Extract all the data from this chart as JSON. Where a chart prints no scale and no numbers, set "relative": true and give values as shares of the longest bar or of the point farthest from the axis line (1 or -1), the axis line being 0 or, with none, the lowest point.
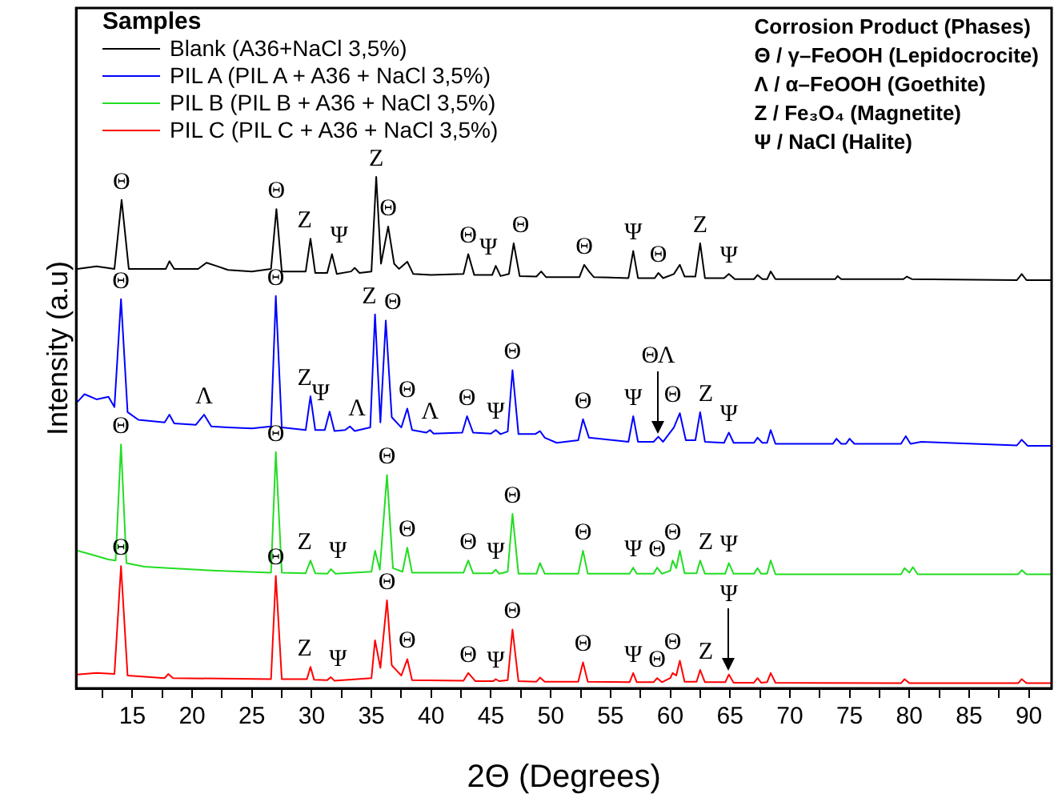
{
  "chart_data": {
    "type": "line",
    "relative": true,
    "xlabel": "2Θ (Degrees)",
    "ylabel": "Intensity (a.u)",
    "legend_title": "Samples",
    "legend": "top left",
    "grid": false,
    "marker": "none",
    "line_style": "solid",
    "xlim": [
      10.3,
      91.9
    ],
    "xticks": [
      {
        "value": 12.5,
        "label": null
      },
      15,
      {
        "value": 17.5,
        "label": null
      },
      20,
      {
        "value": 22.5,
        "label": null
      },
      25,
      {
        "value": 27.5,
        "label": null
      },
      30,
      {
        "value": 32.5,
        "label": null
      },
      35,
      {
        "value": 37.5,
        "label": null
      },
      40,
      {
        "value": 42.5,
        "label": null
      },
      45,
      {
        "value": 47.5,
        "label": null
      },
      50,
      {
        "value": 52.5,
        "label": null
      },
      55,
      {
        "value": 57.5,
        "label": null
      },
      60,
      {
        "value": 62.5,
        "label": null
      },
      65,
      {
        "value": 67.5,
        "label": null
      },
      70,
      {
        "value": 72.5,
        "label": null
      },
      75,
      {
        "value": 77.5,
        "label": null
      },
      80,
      {
        "value": 82.5,
        "label": null
      },
      85,
      {
        "value": 87.5,
        "label": null
      },
      90
    ],
    "series": [
      {
        "name": "Blank (A36+NaCl 3,5%)",
        "color": "#000000",
        "x": [
          10.4,
          12,
          13.5,
          14.1,
          14.7,
          16,
          17.8,
          18.1,
          18.5,
          20.5,
          21.2,
          22,
          23,
          25,
          26.6,
          27.05,
          27.5,
          29.5,
          29.9,
          30.3,
          31.3,
          31.7,
          32.1,
          33.3,
          33.6,
          34,
          35,
          35.4,
          35.8,
          36.4,
          36.9,
          37.3,
          38.0,
          38.5,
          40,
          42.7,
          43.1,
          43.6,
          45.1,
          45.4,
          45.8,
          46.5,
          46.9,
          47.4,
          48.8,
          49.2,
          49.6,
          52.4,
          52.8,
          53.2,
          53.6,
          56.5,
          56.9,
          57.3,
          58.7,
          59,
          59.4,
          60.3,
          60.8,
          61.2,
          62.1,
          62.5,
          62.9,
          64.5,
          64.9,
          65.4,
          67,
          67.3,
          67.7,
          68.1,
          68.4,
          68.8,
          73.8,
          74,
          74.3,
          79.5,
          79.8,
          80.2,
          89,
          89.4,
          89.8,
          91.9
        ],
        "values": [
          0.82,
          0.825,
          0.82,
          0.955,
          0.82,
          0.82,
          0.82,
          0.835,
          0.82,
          0.82,
          0.832,
          0.826,
          0.818,
          0.815,
          0.82,
          0.937,
          0.815,
          0.815,
          0.879,
          0.812,
          0.812,
          0.849,
          0.81,
          0.815,
          0.822,
          0.812,
          0.815,
          1.0,
          0.83,
          0.903,
          0.83,
          0.82,
          0.834,
          0.81,
          0.808,
          0.81,
          0.849,
          0.808,
          0.808,
          0.826,
          0.806,
          0.81,
          0.87,
          0.806,
          0.805,
          0.815,
          0.804,
          0.804,
          0.828,
          0.815,
          0.804,
          0.802,
          0.855,
          0.802,
          0.802,
          0.812,
          0.802,
          0.81,
          0.828,
          0.805,
          0.805,
          0.87,
          0.802,
          0.802,
          0.81,
          0.8,
          0.8,
          0.808,
          0.8,
          0.8,
          0.815,
          0.8,
          0.8,
          0.806,
          0.8,
          0.8,
          0.805,
          0.8,
          0.798,
          0.81,
          0.798,
          0.798
        ]
      },
      {
        "name": "PIL A (PIL A + A36 + NaCl 3,5%)",
        "color": "#0000ff",
        "x": [
          10.4,
          11,
          12,
          13,
          13.5,
          14.05,
          14.6,
          15.5,
          17.7,
          18.1,
          18.5,
          20.3,
          21.0,
          21.6,
          23,
          25,
          26.6,
          27.0,
          27.5,
          29.5,
          29.9,
          30.3,
          31.1,
          31.5,
          31.9,
          32.8,
          33.2,
          33.6,
          34.9,
          35.3,
          35.75,
          36.2,
          36.7,
          37.5,
          38.0,
          38.4,
          39.6,
          39.9,
          40.2,
          42.6,
          43.0,
          43.5,
          45.0,
          45.4,
          45.8,
          46.4,
          46.8,
          47.3,
          48.7,
          49.1,
          49.5,
          50.5,
          52.3,
          52.7,
          53.2,
          56.5,
          56.9,
          57.3,
          58.6,
          59.0,
          59.4,
          60.3,
          60.8,
          61.3,
          62.1,
          62.5,
          62.9,
          64.5,
          64.9,
          65.3,
          67,
          67.3,
          67.7,
          68.1,
          68.4,
          68.8,
          73.6,
          73.9,
          74.3,
          74.7,
          75,
          75.4,
          79.3,
          79.7,
          80.1,
          81,
          89,
          89.4,
          89.9,
          91.9
        ],
        "values": [
          0.56,
          0.575,
          0.565,
          0.57,
          0.55,
          0.761,
          0.54,
          0.525,
          0.52,
          0.535,
          0.518,
          0.515,
          0.535,
          0.512,
          0.51,
          0.508,
          0.512,
          0.767,
          0.51,
          0.505,
          0.571,
          0.505,
          0.505,
          0.541,
          0.503,
          0.505,
          0.512,
          0.503,
          0.51,
          0.731,
          0.52,
          0.719,
          0.53,
          0.51,
          0.547,
          0.505,
          0.5,
          0.505,
          0.498,
          0.5,
          0.532,
          0.5,
          0.498,
          0.505,
          0.497,
          0.502,
          0.622,
          0.497,
          0.497,
          0.503,
          0.49,
          0.48,
          0.485,
          0.526,
          0.49,
          0.482,
          0.532,
          0.482,
          0.482,
          0.492,
          0.482,
          0.51,
          0.538,
          0.485,
          0.485,
          0.54,
          0.482,
          0.48,
          0.5,
          0.48,
          0.48,
          0.49,
          0.48,
          0.48,
          0.505,
          0.478,
          0.478,
          0.488,
          0.478,
          0.478,
          0.488,
          0.478,
          0.478,
          0.493,
          0.478,
          0.482,
          0.475,
          0.486,
          0.474,
          0.474
        ]
      },
      {
        "name": "PIL B (PIL B + A36 + NaCl 3,5%)",
        "color": "#22dd22",
        "x": [
          10.4,
          11.5,
          13,
          13.6,
          14.05,
          14.5,
          16,
          18,
          22,
          26.6,
          27.0,
          27.5,
          29.5,
          29.9,
          30.3,
          31.3,
          31.6,
          32,
          35,
          35.3,
          35.7,
          36.3,
          36.8,
          37.6,
          38.0,
          38.4,
          42.7,
          43.1,
          43.5,
          45.1,
          45.4,
          45.7,
          46.4,
          46.8,
          47.3,
          48.8,
          49.1,
          49.5,
          52.3,
          52.7,
          53.1,
          56.6,
          56.9,
          57.2,
          58.6,
          58.9,
          59.3,
          60.0,
          60.2,
          60.5,
          60.8,
          61.2,
          62.2,
          62.5,
          62.9,
          64.6,
          64.9,
          65.3,
          67,
          67.3,
          67.6,
          68.1,
          68.4,
          68.8,
          79.3,
          79.6,
          80,
          80.3,
          80.7,
          89.1,
          89.4,
          89.8,
          91.9
        ],
        "values": [
          0.269,
          0.262,
          0.252,
          0.25,
          0.477,
          0.245,
          0.238,
          0.235,
          0.23,
          0.226,
          0.462,
          0.226,
          0.225,
          0.25,
          0.225,
          0.224,
          0.233,
          0.224,
          0.228,
          0.269,
          0.232,
          0.417,
          0.235,
          0.228,
          0.275,
          0.226,
          0.226,
          0.25,
          0.225,
          0.225,
          0.232,
          0.224,
          0.228,
          0.341,
          0.224,
          0.224,
          0.245,
          0.224,
          0.224,
          0.269,
          0.224,
          0.224,
          0.236,
          0.224,
          0.224,
          0.236,
          0.224,
          0.23,
          0.25,
          0.235,
          0.269,
          0.225,
          0.225,
          0.25,
          0.224,
          0.224,
          0.245,
          0.224,
          0.224,
          0.235,
          0.224,
          0.224,
          0.25,
          0.223,
          0.223,
          0.235,
          0.226,
          0.237,
          0.223,
          0.223,
          0.231,
          0.223,
          0.223
        ]
      },
      {
        "name": "PIL C (PIL C + A36 + NaCl 3,5%)",
        "color": "#ff0000",
        "x": [
          10.4,
          12,
          13.5,
          14.05,
          14.6,
          17.7,
          18.0,
          18.4,
          26.6,
          27.0,
          27.5,
          29.6,
          29.9,
          30.2,
          31.3,
          31.6,
          31.9,
          35.0,
          35.3,
          35.75,
          36.3,
          36.7,
          37.1,
          37.5,
          38.0,
          38.4,
          42.7,
          43.1,
          43.4,
          43.7,
          45.2,
          45.4,
          45.7,
          46.4,
          46.8,
          47.3,
          48.8,
          49.1,
          49.5,
          52.3,
          52.7,
          53.1,
          56.6,
          56.9,
          57.2,
          58.6,
          58.9,
          59.3,
          60.0,
          60.2,
          60.5,
          60.8,
          61.2,
          62.2,
          62.5,
          62.9,
          64.6,
          64.9,
          65.3,
          67,
          67.3,
          67.6,
          68.1,
          68.4,
          68.8,
          79.3,
          79.6,
          80,
          89.1,
          89.4,
          89.8,
          91.9
        ],
        "values": [
          0.027,
          0.03,
          0.028,
          0.239,
          0.025,
          0.02,
          0.028,
          0.02,
          0.018,
          0.22,
          0.018,
          0.018,
          0.042,
          0.017,
          0.016,
          0.022,
          0.015,
          0.02,
          0.094,
          0.04,
          0.172,
          0.045,
          0.035,
          0.025,
          0.057,
          0.016,
          0.015,
          0.03,
          0.022,
          0.014,
          0.014,
          0.018,
          0.014,
          0.016,
          0.115,
          0.014,
          0.013,
          0.021,
          0.013,
          0.013,
          0.051,
          0.013,
          0.012,
          0.03,
          0.012,
          0.012,
          0.02,
          0.012,
          0.02,
          0.03,
          0.025,
          0.054,
          0.013,
          0.013,
          0.036,
          0.012,
          0.012,
          0.027,
          0.011,
          0.011,
          0.02,
          0.011,
          0.012,
          0.03,
          0.011,
          0.01,
          0.018,
          0.01,
          0.01,
          0.018,
          0.01,
          0.01
        ]
      }
    ],
    "annotations": [
      "Corrosion Product (Phases)",
      "Θ / γ–FeOOH (Lepidocrocite)",
      "Λ / α–FeOOH (Goethite)",
      "Z / Fe₃O₄ (Magnetite)",
      "Ψ / NaCl (Halite)",
      {
        "text": "Θ",
        "x": 14.1,
        "y": 0.955
      },
      {
        "text": "Θ",
        "x": 27.05,
        "y": 0.937
      },
      {
        "text": "Z",
        "x": 29.9,
        "y": 0.879
      },
      {
        "text": "Ψ",
        "x": 31.7,
        "y": 0.849
      },
      {
        "text": "Z",
        "x": 35.4,
        "y": 1.0
      },
      {
        "text": "Θ",
        "x": 36.4,
        "y": 0.903
      },
      {
        "text": "Θ",
        "x": 43.1,
        "y": 0.849
      },
      {
        "text": "Ψ",
        "x": 45.4,
        "y": 0.826
      },
      {
        "text": "Θ",
        "x": 46.9,
        "y": 0.87
      },
      {
        "text": "Θ",
        "x": 52.8,
        "y": 0.828
      },
      {
        "text": "Ψ",
        "x": 56.9,
        "y": 0.855
      },
      {
        "text": "Θ",
        "x": 59,
        "y": 0.812
      },
      {
        "text": "Z",
        "x": 62.5,
        "y": 0.87
      },
      {
        "text": "Ψ",
        "x": 64.9,
        "y": 0.81
      },
      {
        "text": "Θ",
        "x": 14.05,
        "y": 0.761
      },
      {
        "text": "Λ",
        "x": 21.0,
        "y": 0.535
      },
      {
        "text": "Θ",
        "x": 27.0,
        "y": 0.767
      },
      {
        "text": "Z",
        "x": 29.9,
        "y": 0.571
      },
      {
        "text": "Ψ",
        "x": 31.5,
        "y": 0.541
      },
      {
        "text": "Λ",
        "x": 33.2,
        "y": 0.512
      },
      {
        "text": "Z",
        "x": 35.3,
        "y": 0.731
      },
      {
        "text": "Θ",
        "x": 36.2,
        "y": 0.719
      },
      {
        "text": "Θ",
        "x": 38.0,
        "y": 0.547
      },
      {
        "text": "Λ",
        "x": 39.9,
        "y": 0.505
      },
      {
        "text": "Θ",
        "x": 43.0,
        "y": 0.532
      },
      {
        "text": "Ψ",
        "x": 45.4,
        "y": 0.505
      },
      {
        "text": "Θ",
        "x": 46.8,
        "y": 0.622
      },
      {
        "text": "Θ",
        "x": 52.7,
        "y": 0.526
      },
      {
        "text": "Ψ",
        "x": 56.9,
        "y": 0.532
      },
      {
        "text": "ΘΛ",
        "x": 59.0,
        "y": 0.492
      },
      {
        "text": "Θ",
        "x": 60.8,
        "y": 0.538
      },
      {
        "text": "Z",
        "x": 62.5,
        "y": 0.54
      },
      {
        "text": "Ψ",
        "x": 64.9,
        "y": 0.5
      },
      {
        "text": "Θ",
        "x": 14.05,
        "y": 0.477
      },
      {
        "text": "Θ",
        "x": 27.0,
        "y": 0.462
      },
      {
        "text": "Z",
        "x": 29.9,
        "y": 0.25
      },
      {
        "text": "Ψ",
        "x": 31.6,
        "y": 0.233
      },
      {
        "text": "Θ",
        "x": 36.3,
        "y": 0.417
      },
      {
        "text": "Θ",
        "x": 38.0,
        "y": 0.275
      },
      {
        "text": "Θ",
        "x": 43.1,
        "y": 0.25
      },
      {
        "text": "Ψ",
        "x": 45.4,
        "y": 0.232
      },
      {
        "text": "Θ",
        "x": 46.8,
        "y": 0.341
      },
      {
        "text": "Θ",
        "x": 52.7,
        "y": 0.269
      },
      {
        "text": "Ψ",
        "x": 56.9,
        "y": 0.236
      },
      {
        "text": "Θ",
        "x": 58.9,
        "y": 0.236
      },
      {
        "text": "Θ",
        "x": 60.8,
        "y": 0.269
      },
      {
        "text": "Z",
        "x": 62.5,
        "y": 0.25
      },
      {
        "text": "Ψ",
        "x": 64.9,
        "y": 0.245
      },
      {
        "text": "Θ",
        "x": 14.05,
        "y": 0.239
      },
      {
        "text": "Θ",
        "x": 27.0,
        "y": 0.22
      },
      {
        "text": "Z",
        "x": 29.9,
        "y": 0.042
      },
      {
        "text": "Ψ",
        "x": 31.6,
        "y": 0.022
      },
      {
        "text": "Θ",
        "x": 36.3,
        "y": 0.172
      },
      {
        "text": "Θ",
        "x": 38.0,
        "y": 0.057
      },
      {
        "text": "Θ",
        "x": 43.1,
        "y": 0.03
      },
      {
        "text": "Ψ",
        "x": 45.4,
        "y": 0.018
      },
      {
        "text": "Θ",
        "x": 46.8,
        "y": 0.115
      },
      {
        "text": "Θ",
        "x": 52.7,
        "y": 0.051
      },
      {
        "text": "Ψ",
        "x": 56.9,
        "y": 0.03
      },
      {
        "text": "Θ",
        "x": 58.9,
        "y": 0.02
      },
      {
        "text": "Θ",
        "x": 60.8,
        "y": 0.054
      },
      {
        "text": "Z",
        "x": 62.5,
        "y": 0.036
      },
      {
        "text": "Ψ",
        "x": 64.9,
        "y": 0.027
      }
    ]
  }
}
